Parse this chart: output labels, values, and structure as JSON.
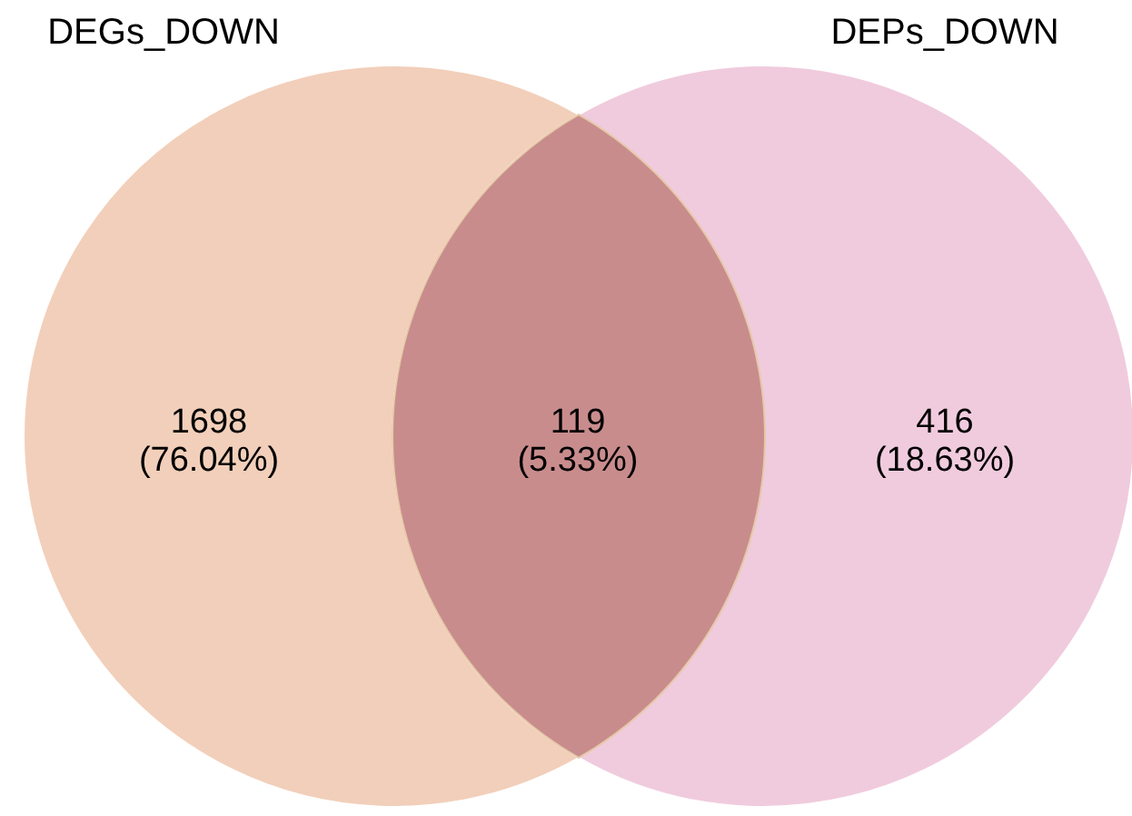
{
  "chart_data": {
    "type": "other",
    "annotations": [
      "DEGs_DOWN",
      "DEPs_DOWN",
      "(76.04%)",
      "(5.33%)",
      "(18.63%)"
    ],
    "categories": [
      null,
      null,
      null
    ],
    "values": [
      1698,
      119,
      416
    ],
    "data_labels": true,
    "colors": [
      "#f2cfba",
      "#c98c8d",
      "#f0cbdd"
    ]
  }
}
